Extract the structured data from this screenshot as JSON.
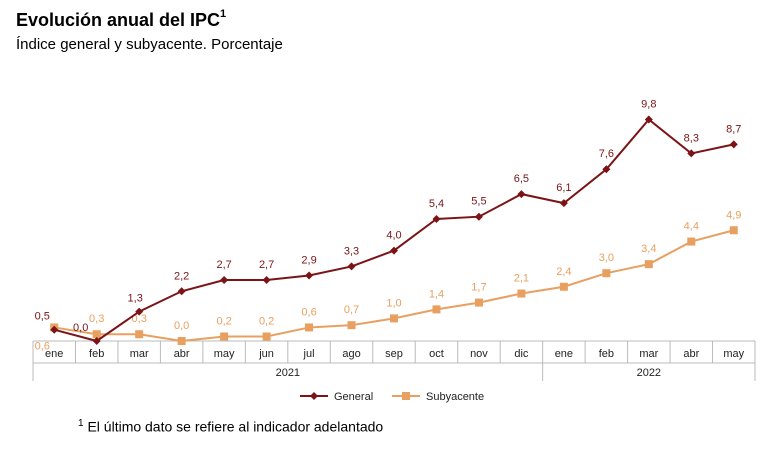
{
  "chart_data": {
    "type": "line",
    "title": "Evolución anual del IPC",
    "title_sup": "1",
    "subtitle": "Índice general y subyacente. Porcentaje",
    "categories": [
      "ene",
      "feb",
      "mar",
      "abr",
      "may",
      "jun",
      "jul",
      "ago",
      "sep",
      "oct",
      "nov",
      "dic",
      "ene",
      "feb",
      "mar",
      "abr",
      "may"
    ],
    "groups": [
      {
        "label": "2021",
        "from": 0,
        "to": 11
      },
      {
        "label": "2022",
        "from": 12,
        "to": 16
      }
    ],
    "series": [
      {
        "name": "General",
        "color": "#7b1416",
        "marker": "diamond",
        "values": [
          0.5,
          0.0,
          1.3,
          2.2,
          2.7,
          2.7,
          2.9,
          3.3,
          4.0,
          5.4,
          5.5,
          6.5,
          6.1,
          7.6,
          9.8,
          8.3,
          8.7
        ],
        "labels": [
          "0,5",
          "0,0",
          "1,3",
          "2,2",
          "2,7",
          "2,7",
          "2,9",
          "3,3",
          "4,0",
          "5,4",
          "5,5",
          "6,5",
          "6,1",
          "7,6",
          "9,8",
          "8,3",
          "8,7"
        ]
      },
      {
        "name": "Subyacente",
        "color": "#e8a060",
        "marker": "square",
        "values": [
          0.6,
          0.3,
          0.3,
          0.0,
          0.2,
          0.2,
          0.6,
          0.7,
          1.0,
          1.4,
          1.7,
          2.1,
          2.4,
          3.0,
          3.4,
          4.4,
          4.9
        ],
        "labels": [
          "0,6",
          "0,3",
          "0,3",
          "0,0",
          "0,2",
          "0,2",
          "0,6",
          "0,7",
          "1,0",
          "1,4",
          "1,7",
          "2,1",
          "2,4",
          "3,0",
          "3,4",
          "4,4",
          "4,9"
        ]
      }
    ],
    "ylim": [
      0,
      11
    ],
    "grid": false,
    "legend": "bottom"
  },
  "footnote": {
    "sup": "1",
    "text": "El último dato se refiere al indicador adelantado"
  }
}
